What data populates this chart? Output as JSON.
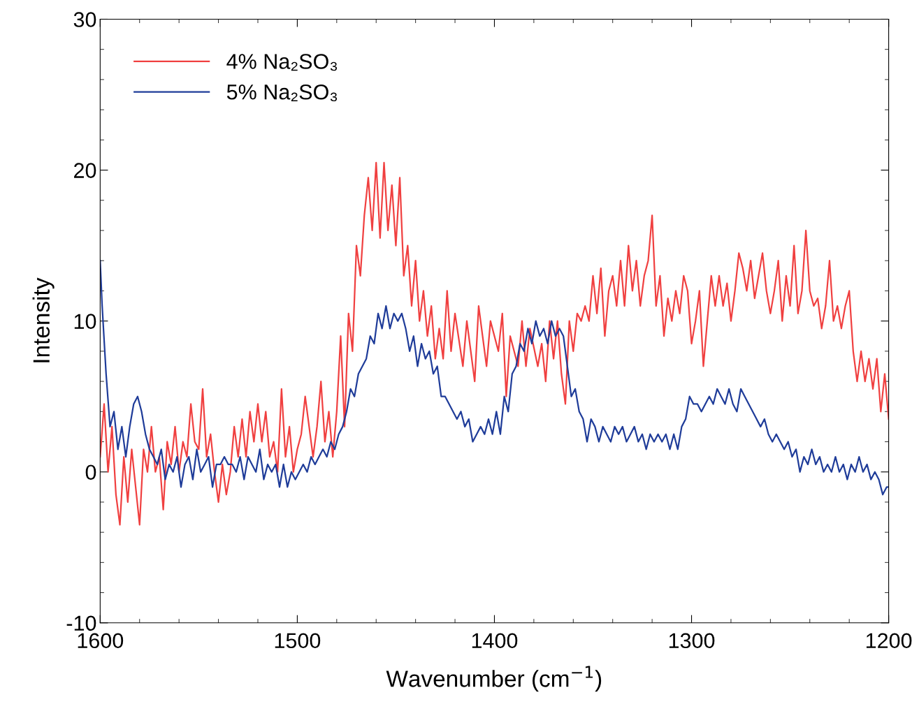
{
  "chart_data": {
    "type": "line",
    "xlabel": "Wavenumber (cm$^{−1}$)",
    "ylabel": "Intensity",
    "xlim": [
      1600,
      1200
    ],
    "xticks": [
      1600,
      1500,
      1400,
      1300,
      1200
    ],
    "ylim": [
      -10,
      30
    ],
    "yticks": [
      -10,
      0,
      10,
      20,
      30
    ],
    "legend": "top left",
    "grid": false,
    "marker": "none",
    "line_style": "solid",
    "series": [
      {
        "name": "4% Na₂SO₃",
        "color": "#f04040",
        "x": [
          1600,
          1598,
          1596,
          1594,
          1592,
          1590,
          1588,
          1586,
          1584,
          1582,
          1580,
          1578,
          1576,
          1574,
          1572,
          1570,
          1568,
          1566,
          1564,
          1562,
          1560,
          1558,
          1556,
          1554,
          1552,
          1550,
          1548,
          1546,
          1544,
          1542,
          1540,
          1538,
          1536,
          1534,
          1532,
          1530,
          1528,
          1526,
          1524,
          1522,
          1520,
          1518,
          1516,
          1514,
          1512,
          1510,
          1508,
          1506,
          1504,
          1502,
          1500,
          1498,
          1496,
          1494,
          1492,
          1490,
          1488,
          1486,
          1484,
          1482,
          1480,
          1478,
          1476,
          1474,
          1472,
          1470,
          1468,
          1466,
          1464,
          1462,
          1460,
          1458,
          1456,
          1454,
          1452,
          1450,
          1448,
          1446,
          1444,
          1442,
          1440,
          1438,
          1436,
          1434,
          1432,
          1430,
          1428,
          1426,
          1424,
          1422,
          1420,
          1416,
          1414,
          1410,
          1408,
          1404,
          1402,
          1398,
          1396,
          1394,
          1392,
          1388,
          1386,
          1384,
          1382,
          1378,
          1376,
          1374,
          1372,
          1370,
          1368,
          1366,
          1364,
          1362,
          1360,
          1358,
          1356,
          1354,
          1352,
          1350,
          1348,
          1346,
          1344,
          1342,
          1340,
          1338,
          1336,
          1334,
          1332,
          1330,
          1328,
          1326,
          1324,
          1322,
          1320,
          1318,
          1316,
          1314,
          1312,
          1310,
          1308,
          1306,
          1304,
          1302,
          1300,
          1298,
          1296,
          1294,
          1292,
          1290,
          1288,
          1286,
          1284,
          1282,
          1280,
          1278,
          1276,
          1274,
          1272,
          1270,
          1268,
          1266,
          1264,
          1262,
          1260,
          1258,
          1256,
          1254,
          1252,
          1250,
          1248,
          1246,
          1244,
          1242,
          1240,
          1238,
          1236,
          1234,
          1232,
          1230,
          1228,
          1226,
          1224,
          1222,
          1220,
          1218,
          1216,
          1214,
          1212,
          1210,
          1208,
          1206,
          1204,
          1202,
          1200
        ],
        "values": [
          1,
          4.5,
          0,
          3,
          -1.5,
          -3.5,
          1,
          -2,
          1.5,
          -1,
          -3.5,
          1.5,
          0,
          3,
          0,
          1,
          -2.5,
          2,
          0.5,
          3,
          0,
          2,
          1,
          4.5,
          2,
          1.5,
          5.5,
          1,
          2.5,
          0,
          -2,
          0.5,
          -1.5,
          0,
          3,
          1,
          3.5,
          1,
          4,
          2,
          4.5,
          2,
          4,
          1,
          2,
          0,
          5.5,
          1,
          3,
          0,
          1.5,
          2.5,
          5,
          3,
          1,
          3,
          6,
          2,
          4,
          1,
          4,
          9,
          3,
          10.5,
          8,
          15,
          13,
          17,
          19.5,
          16,
          20.5,
          15.5,
          20.5,
          16,
          19,
          15,
          19.5,
          13,
          15,
          11,
          14,
          10,
          12,
          9,
          11,
          7.5,
          9.5,
          7.5,
          12,
          8,
          10.5,
          7,
          10,
          6,
          11,
          7,
          10,
          8,
          10.5,
          5,
          9,
          7,
          10,
          7,
          9.5,
          7,
          8.5,
          6,
          10,
          7.5,
          10,
          6.5,
          4.5,
          10,
          8,
          10.5,
          10,
          11,
          10,
          13,
          10.5,
          13.5,
          9,
          12,
          13,
          11,
          14,
          11,
          15,
          12,
          14,
          11,
          13,
          14,
          17,
          11,
          13,
          9,
          11.5,
          10,
          12,
          10.5,
          13,
          12,
          8.5,
          10,
          12,
          7,
          10,
          13,
          11,
          13,
          11,
          12.5,
          10,
          12,
          14.5,
          13.5,
          12,
          14,
          11.5,
          13,
          14.5,
          12,
          10.5,
          12,
          14,
          10,
          13,
          11,
          15,
          10.5,
          12,
          16,
          12,
          11,
          11.5,
          9.5,
          11,
          14,
          10,
          11,
          9.5,
          11,
          12,
          8,
          6,
          8,
          6,
          7.5,
          5.5,
          7.5,
          4,
          6.5,
          3.5
        ]
      },
      {
        "name": "5% Na₂SO₃",
        "color": "#1f3c99",
        "x": [
          1600,
          1599,
          1597,
          1595,
          1593,
          1591,
          1589,
          1587,
          1585,
          1583,
          1581,
          1579,
          1577,
          1575,
          1573,
          1571,
          1569,
          1567,
          1565,
          1563,
          1561,
          1559,
          1557,
          1555,
          1553,
          1551,
          1549,
          1547,
          1545,
          1543,
          1541,
          1539,
          1537,
          1535,
          1533,
          1531,
          1529,
          1527,
          1525,
          1523,
          1521,
          1519,
          1517,
          1515,
          1513,
          1511,
          1509,
          1507,
          1505,
          1503,
          1501,
          1499,
          1497,
          1495,
          1493,
          1491,
          1489,
          1487,
          1485,
          1483,
          1481,
          1479,
          1477,
          1475,
          1473,
          1471,
          1469,
          1467,
          1465,
          1463,
          1461,
          1459,
          1457,
          1455,
          1453,
          1451,
          1449,
          1447,
          1445,
          1443,
          1441,
          1439,
          1437,
          1435,
          1433,
          1431,
          1429,
          1427,
          1425,
          1423,
          1421,
          1419,
          1417,
          1415,
          1413,
          1411,
          1409,
          1407,
          1405,
          1403,
          1401,
          1399,
          1397,
          1395,
          1393,
          1391,
          1389,
          1387,
          1385,
          1383,
          1381,
          1379,
          1377,
          1375,
          1373,
          1371,
          1369,
          1367,
          1365,
          1363,
          1361,
          1359,
          1357,
          1355,
          1353,
          1351,
          1349,
          1347,
          1345,
          1343,
          1341,
          1339,
          1337,
          1335,
          1333,
          1331,
          1329,
          1327,
          1325,
          1323,
          1321,
          1319,
          1317,
          1315,
          1313,
          1311,
          1309,
          1307,
          1305,
          1303,
          1301,
          1299,
          1297,
          1295,
          1293,
          1291,
          1289,
          1287,
          1285,
          1283,
          1281,
          1279,
          1277,
          1275,
          1273,
          1271,
          1269,
          1267,
          1265,
          1263,
          1261,
          1259,
          1257,
          1255,
          1253,
          1251,
          1249,
          1247,
          1245,
          1243,
          1241,
          1239,
          1237,
          1235,
          1233,
          1231,
          1229,
          1227,
          1225,
          1223,
          1221,
          1219,
          1217,
          1215,
          1213,
          1211,
          1209,
          1207,
          1205,
          1203,
          1201,
          1200
        ],
        "values": [
          14,
          11,
          6.5,
          3,
          4,
          1.5,
          3,
          1,
          3,
          4.5,
          5,
          4,
          2.5,
          1.5,
          1,
          0.5,
          1.5,
          -0.5,
          0.5,
          0,
          1,
          -1,
          0.5,
          1,
          -0.5,
          1.5,
          0,
          0.5,
          1,
          -1,
          0.5,
          0.5,
          1,
          0.5,
          0.5,
          0,
          1,
          -0.5,
          1,
          0.5,
          0,
          1.5,
          -0.5,
          0.5,
          0,
          0.5,
          -1,
          0.5,
          -1,
          0,
          -0.5,
          0,
          0.5,
          0,
          1,
          0.5,
          1,
          1.5,
          1,
          2,
          1.5,
          2.5,
          3,
          4,
          5.5,
          5,
          6.5,
          7,
          7.5,
          9,
          8.5,
          10.5,
          9.5,
          11,
          9.5,
          10.5,
          10,
          10.5,
          9.5,
          8,
          9,
          7,
          8.5,
          7.5,
          8,
          6.5,
          7,
          5,
          5,
          4.5,
          4,
          3.5,
          4,
          3,
          3.5,
          2,
          2.5,
          3,
          2.5,
          3.5,
          2.5,
          4,
          2.5,
          5,
          4,
          6.5,
          7,
          8.5,
          8,
          9.5,
          8.5,
          10,
          9,
          9.5,
          8.5,
          10,
          9,
          9.5,
          9,
          7,
          5,
          5.5,
          4,
          3.5,
          2,
          3.5,
          3,
          2,
          3,
          2.5,
          2,
          3,
          2.5,
          3,
          2,
          2.5,
          3,
          2,
          2.5,
          1.5,
          2.5,
          2,
          2.5,
          2,
          2.5,
          1.5,
          2.5,
          1.5,
          3,
          3.5,
          5,
          4.5,
          4.5,
          4,
          4.5,
          5,
          4.5,
          5.5,
          5,
          4.5,
          5.5,
          4.5,
          4,
          5.5,
          5,
          4.5,
          4,
          3.5,
          3,
          3.5,
          2.5,
          2,
          2.5,
          2,
          1.5,
          2,
          1,
          1.5,
          0,
          1,
          0.5,
          1.5,
          0.5,
          1,
          0,
          0.5,
          0,
          1,
          0,
          0.5,
          -0.5,
          0.5,
          0,
          1,
          0,
          0.5,
          -0.5,
          0,
          -0.5,
          -1.5,
          -1,
          -1
        ]
      }
    ]
  }
}
